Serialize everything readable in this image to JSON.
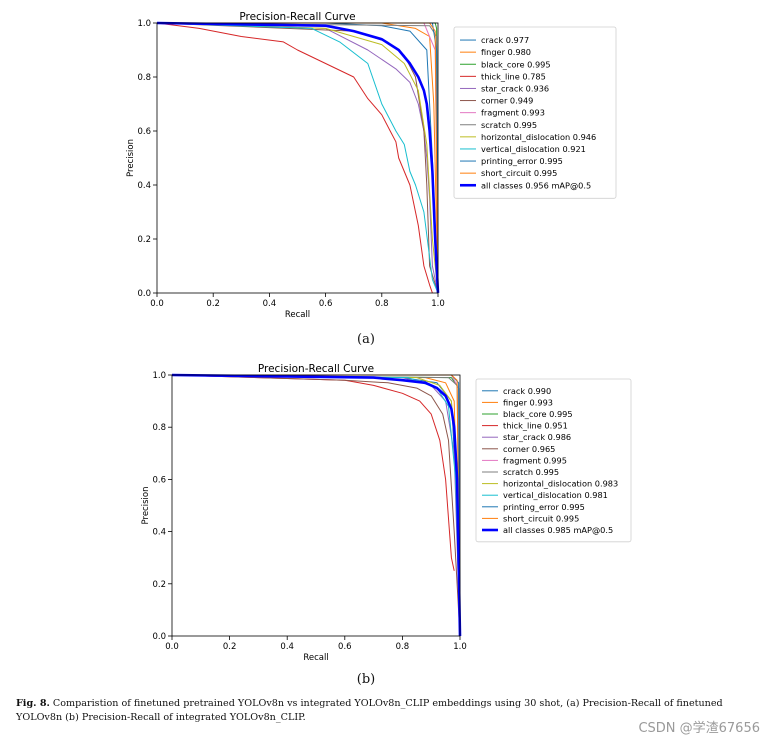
{
  "chart_data": [
    {
      "type": "line",
      "title": "Precision-Recall Curve",
      "xlabel": "Recall",
      "ylabel": "Precision",
      "xlim": [
        0.0,
        1.0
      ],
      "ylim": [
        0.0,
        1.0
      ],
      "xticks": [
        "0.0",
        "0.2",
        "0.4",
        "0.6",
        "0.8",
        "1.0"
      ],
      "yticks": [
        "0.0",
        "0.2",
        "0.4",
        "0.6",
        "0.8",
        "1.0"
      ],
      "legend_position": "right",
      "series": [
        {
          "name": "crack 0.977",
          "color": "#1f77b4",
          "width": 1,
          "x": [
            0,
            0.6,
            0.8,
            0.9,
            0.96,
            0.98,
            1.0
          ],
          "y": [
            1,
            1,
            0.99,
            0.97,
            0.9,
            0.5,
            0
          ]
        },
        {
          "name": "finger 0.980",
          "color": "#ff7f0e",
          "width": 1,
          "x": [
            0,
            0.8,
            0.92,
            0.97,
            0.985,
            1.0
          ],
          "y": [
            1,
            1,
            0.98,
            0.95,
            0.7,
            0
          ]
        },
        {
          "name": "black_core 0.995",
          "color": "#2ca02c",
          "width": 1,
          "x": [
            0,
            0.99,
            0.995,
            1.0
          ],
          "y": [
            1,
            1,
            0.98,
            0
          ]
        },
        {
          "name": "thick_line 0.785",
          "color": "#d62728",
          "width": 1,
          "x": [
            0.0,
            0.15,
            0.3,
            0.45,
            0.5,
            0.6,
            0.7,
            0.75,
            0.8,
            0.83,
            0.85,
            0.86,
            0.88,
            0.9,
            0.92,
            0.93,
            0.95,
            0.97,
            0.98
          ],
          "y": [
            1,
            0.98,
            0.95,
            0.93,
            0.9,
            0.85,
            0.8,
            0.72,
            0.66,
            0.6,
            0.56,
            0.5,
            0.45,
            0.4,
            0.3,
            0.25,
            0.1,
            0.03,
            0
          ]
        },
        {
          "name": "star_crack 0.936",
          "color": "#9467bd",
          "width": 1,
          "x": [
            0,
            0.6,
            0.75,
            0.85,
            0.9,
            0.93,
            0.95,
            0.96,
            0.97,
            0.98,
            1.0
          ],
          "y": [
            1,
            0.98,
            0.9,
            0.83,
            0.78,
            0.7,
            0.6,
            0.5,
            0.35,
            0.1,
            0
          ]
        },
        {
          "name": "corner 0.949",
          "color": "#8c564b",
          "width": 1,
          "x": [
            0,
            0.7,
            0.82,
            0.88,
            0.92,
            0.95,
            0.96,
            0.97,
            1.0
          ],
          "y": [
            1,
            0.97,
            0.93,
            0.88,
            0.8,
            0.6,
            0.4,
            0.1,
            0
          ]
        },
        {
          "name": "fragment 0.993",
          "color": "#e377c2",
          "width": 1,
          "x": [
            0,
            0.95,
            0.99,
            1.0
          ],
          "y": [
            1,
            1,
            0.9,
            0
          ]
        },
        {
          "name": "scratch 0.995",
          "color": "#7f7f7f",
          "width": 1,
          "x": [
            0,
            0.97,
            0.995,
            1.0
          ],
          "y": [
            1,
            0.99,
            0.95,
            0
          ]
        },
        {
          "name": "horizontal_dislocation 0.946",
          "color": "#bcbd22",
          "width": 1,
          "x": [
            0,
            0.6,
            0.8,
            0.88,
            0.93,
            0.96,
            0.98,
            1.0
          ],
          "y": [
            1,
            0.98,
            0.92,
            0.85,
            0.75,
            0.55,
            0.2,
            0
          ]
        },
        {
          "name": "vertical_dislocation 0.921",
          "color": "#17becf",
          "width": 1,
          "x": [
            0,
            0.55,
            0.65,
            0.75,
            0.8,
            0.85,
            0.88,
            0.9,
            0.92,
            0.95,
            0.98,
            1.0
          ],
          "y": [
            1,
            0.98,
            0.93,
            0.85,
            0.7,
            0.6,
            0.55,
            0.45,
            0.4,
            0.3,
            0.05,
            0
          ]
        },
        {
          "name": "printing_error 0.995",
          "color": "#1f77b4",
          "width": 1,
          "x": [
            0,
            0.98,
            0.995,
            1.0
          ],
          "y": [
            1,
            1,
            0.9,
            0
          ]
        },
        {
          "name": "short_circuit 0.995",
          "color": "#ff7f0e",
          "width": 1,
          "x": [
            0,
            0.97,
            0.99,
            1.0
          ],
          "y": [
            1,
            1,
            0.97,
            0
          ]
        },
        {
          "name": "all classes 0.956 mAP@0.5",
          "color": "#0000ff",
          "width": 2.6,
          "x": [
            0,
            0.6,
            0.7,
            0.8,
            0.86,
            0.9,
            0.93,
            0.95,
            0.96,
            0.97,
            0.98,
            0.99,
            1.0
          ],
          "y": [
            1,
            0.99,
            0.97,
            0.94,
            0.9,
            0.85,
            0.8,
            0.75,
            0.7,
            0.6,
            0.45,
            0.2,
            0
          ]
        }
      ]
    },
    {
      "type": "line",
      "title": "Precision-Recall Curve",
      "xlabel": "Recall",
      "ylabel": "Precision",
      "xlim": [
        0.0,
        1.0
      ],
      "ylim": [
        0.0,
        1.0
      ],
      "xticks": [
        "0.0",
        "0.2",
        "0.4",
        "0.6",
        "0.8",
        "1.0"
      ],
      "yticks": [
        "0.0",
        "0.2",
        "0.4",
        "0.6",
        "0.8",
        "1.0"
      ],
      "legend_position": "right",
      "series": [
        {
          "name": "crack 0.990",
          "color": "#1f77b4",
          "width": 1,
          "x": [
            0,
            0.8,
            0.92,
            0.97,
            0.99,
            1.0
          ],
          "y": [
            1,
            0.99,
            0.97,
            0.9,
            0.5,
            0
          ]
        },
        {
          "name": "finger 0.993",
          "color": "#ff7f0e",
          "width": 1,
          "x": [
            0,
            0.88,
            0.95,
            0.98,
            1.0
          ],
          "y": [
            1,
            0.99,
            0.97,
            0.9,
            0
          ]
        },
        {
          "name": "black_core 0.995",
          "color": "#2ca02c",
          "width": 1,
          "x": [
            0,
            0.97,
            0.995,
            1.0
          ],
          "y": [
            1,
            0.99,
            0.95,
            0
          ]
        },
        {
          "name": "thick_line 0.951",
          "color": "#d62728",
          "width": 1,
          "x": [
            0,
            0.6,
            0.7,
            0.8,
            0.86,
            0.9,
            0.93,
            0.95,
            0.96,
            0.97,
            0.98
          ],
          "y": [
            1,
            0.98,
            0.96,
            0.93,
            0.9,
            0.85,
            0.75,
            0.6,
            0.45,
            0.3,
            0.25
          ]
        },
        {
          "name": "star_crack 0.986",
          "color": "#9467bd",
          "width": 1,
          "x": [
            0,
            0.8,
            0.9,
            0.95,
            0.98,
            1.0
          ],
          "y": [
            1,
            0.99,
            0.96,
            0.9,
            0.7,
            0
          ]
        },
        {
          "name": "corner 0.965",
          "color": "#8c564b",
          "width": 1,
          "x": [
            0,
            0.6,
            0.75,
            0.85,
            0.9,
            0.94,
            0.96,
            0.98,
            1.0
          ],
          "y": [
            1,
            0.98,
            0.97,
            0.95,
            0.92,
            0.85,
            0.75,
            0.4,
            0
          ]
        },
        {
          "name": "fragment 0.995",
          "color": "#e377c2",
          "width": 1,
          "x": [
            0,
            0.97,
            0.995,
            1.0
          ],
          "y": [
            1,
            1,
            0.95,
            0
          ]
        },
        {
          "name": "scratch 0.995",
          "color": "#7f7f7f",
          "width": 1,
          "x": [
            0,
            0.96,
            0.99,
            1.0
          ],
          "y": [
            1,
            0.99,
            0.96,
            0
          ]
        },
        {
          "name": "horizontal_dislocation 0.983",
          "color": "#bcbd22",
          "width": 1,
          "x": [
            0,
            0.85,
            0.93,
            0.97,
            0.99,
            1.0
          ],
          "y": [
            1,
            0.99,
            0.96,
            0.9,
            0.6,
            0
          ]
        },
        {
          "name": "vertical_dislocation 0.981",
          "color": "#17becf",
          "width": 1,
          "x": [
            0,
            0.82,
            0.92,
            0.96,
            0.985,
            1.0
          ],
          "y": [
            1,
            0.99,
            0.95,
            0.88,
            0.6,
            0
          ]
        },
        {
          "name": "printing_error 0.995",
          "color": "#1f77b4",
          "width": 1,
          "x": [
            0,
            0.97,
            0.995,
            1.0
          ],
          "y": [
            1,
            1,
            0.97,
            0
          ]
        },
        {
          "name": "short_circuit 0.995",
          "color": "#ff7f0e",
          "width": 1,
          "x": [
            0,
            0.97,
            0.99,
            1.0
          ],
          "y": [
            1,
            1,
            0.98,
            0
          ]
        },
        {
          "name": "all classes 0.985 mAP@0.5",
          "color": "#0000ff",
          "width": 2.6,
          "x": [
            0,
            0.7,
            0.8,
            0.88,
            0.92,
            0.95,
            0.97,
            0.98,
            0.99,
            1.0
          ],
          "y": [
            1,
            0.99,
            0.98,
            0.97,
            0.95,
            0.92,
            0.87,
            0.8,
            0.6,
            0
          ]
        }
      ]
    }
  ],
  "captions": {
    "a": "(a)",
    "b": "(b)",
    "figure_label": "Fig. 8.",
    "figure_text": "Comparistion of finetuned pretrained YOLOv8n vs integrated YOLOv8n_CLIP embeddings using 30 shot, (a) Precision-Recall of finetuned YOLOv8n (b) Precision-Recall of integrated YOLOv8n_CLIP."
  },
  "watermark": "CSDN @学渣67656"
}
